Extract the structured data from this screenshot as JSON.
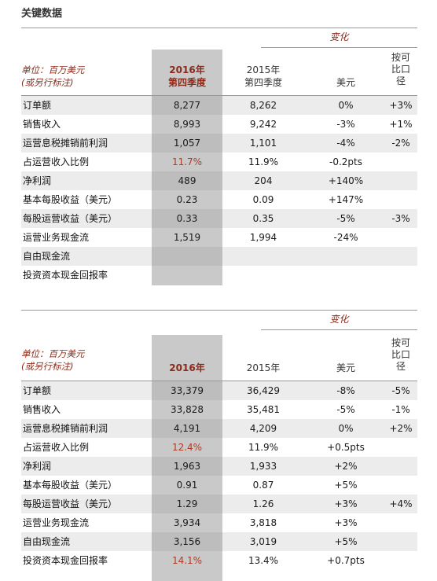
{
  "title": "关键数据",
  "change_label": "变化",
  "unit_line1": "单位：百万美元",
  "unit_line2": "(或另行标注)",
  "fx_l1": "按可",
  "fx_l2": "比口",
  "fx_l3": "径",
  "usd": "美元",
  "q": {
    "h2016_l1": "2016年",
    "h2016_l2": "第四季度",
    "h2015_l1": "2015年",
    "h2015_l2": "第四季度",
    "rows": [
      {
        "label": "订单额",
        "v16": "8,277",
        "v15": "8,262",
        "usd": "0%",
        "fx": "+3%"
      },
      {
        "label": "销售收入",
        "v16": "8,993",
        "v15": "9,242",
        "usd": "-3%",
        "fx": "+1%"
      },
      {
        "label": "运营息税摊销前利润",
        "v16": "1,057",
        "v15": "1,101",
        "usd": "-4%",
        "fx": "-2%"
      },
      {
        "label": "占运营收入比例",
        "v16": "11.7%",
        "v15": "11.9%",
        "usd": "-0.2pts",
        "fx": ""
      },
      {
        "label": "净利润",
        "v16": "489",
        "v15": "204",
        "usd": "+140%",
        "fx": ""
      },
      {
        "label": "基本每股收益（美元）",
        "v16": "0.23",
        "v15": "0.09",
        "usd": "+147%",
        "fx": ""
      },
      {
        "label": "每股运营收益（美元）",
        "v16": "0.33",
        "v15": "0.35",
        "usd": "-5%",
        "fx": "-3%"
      },
      {
        "label": "运营业务现金流",
        "v16": "1,519",
        "v15": "1,994",
        "usd": "-24%",
        "fx": ""
      },
      {
        "label": "自由现金流",
        "v16": "",
        "v15": "",
        "usd": "",
        "fx": ""
      },
      {
        "label": "投资资本现金回报率",
        "v16": "",
        "v15": "",
        "usd": "",
        "fx": ""
      }
    ]
  },
  "y": {
    "h2016": "2016年",
    "h2015": "2015年",
    "rows": [
      {
        "label": "订单额",
        "v16": "33,379",
        "v15": "36,429",
        "usd": "-8%",
        "fx": "-5%"
      },
      {
        "label": "销售收入",
        "v16": "33,828",
        "v15": "35,481",
        "usd": "-5%",
        "fx": "-1%"
      },
      {
        "label": "运营息税摊销前利润",
        "v16": "4,191",
        "v15": "4,209",
        "usd": "0%",
        "fx": "+2%"
      },
      {
        "label": "占运营收入比例",
        "v16": "12.4%",
        "v15": "11.9%",
        "usd": "+0.5pts",
        "fx": ""
      },
      {
        "label": "净利润",
        "v16": "1,963",
        "v15": "1,933",
        "usd": "+2%",
        "fx": ""
      },
      {
        "label": "基本每股收益（美元）",
        "v16": "0.91",
        "v15": "0.87",
        "usd": "+5%",
        "fx": ""
      },
      {
        "label": "每股运营收益（美元）",
        "v16": "1.29",
        "v15": "1.26",
        "usd": "+3%",
        "fx": "+4%"
      },
      {
        "label": "运营业务现金流",
        "v16": "3,934",
        "v15": "3,818",
        "usd": "+3%",
        "fx": ""
      },
      {
        "label": "自由现金流",
        "v16": "3,156",
        "v15": "3,019",
        "usd": "+5%",
        "fx": ""
      },
      {
        "label": "投资资本现金回报率",
        "v16": "14.1%",
        "v15": "13.4%",
        "usd": "+0.7pts",
        "fx": ""
      }
    ]
  },
  "colors": {
    "accent": "#8b2a1a",
    "highlight": "#c9c9c9",
    "shade": "#ececec"
  }
}
